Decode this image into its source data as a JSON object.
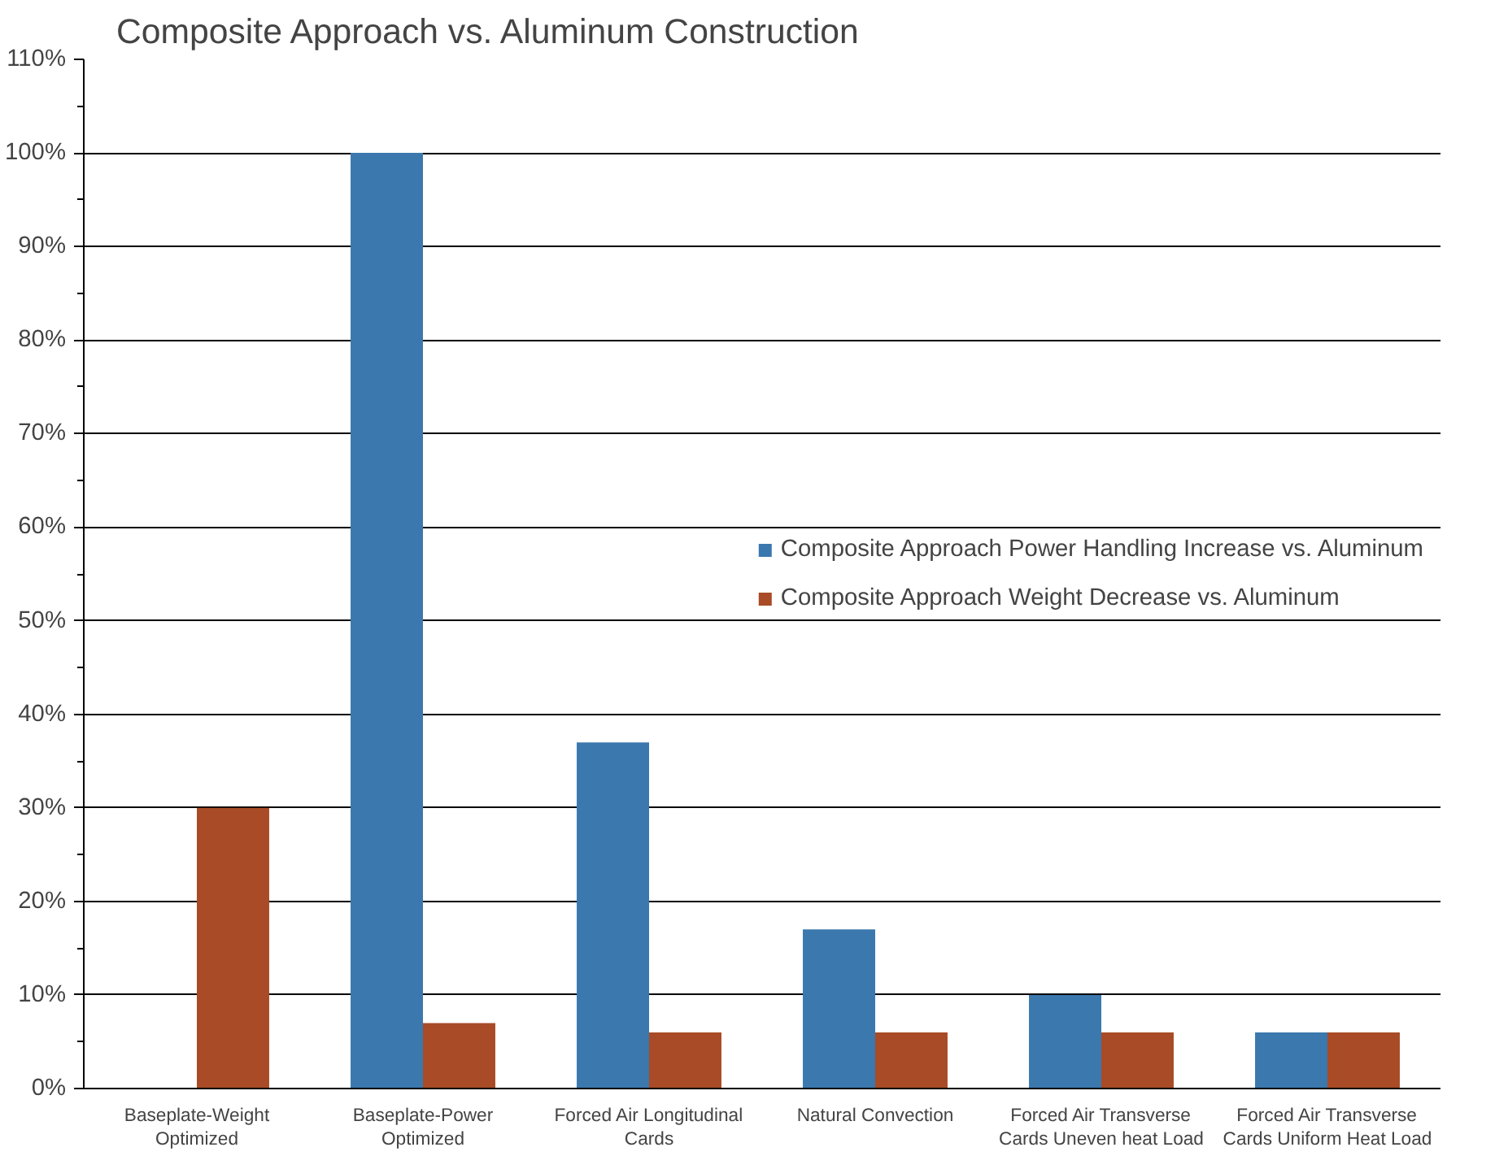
{
  "chart_data": {
    "type": "bar",
    "title": "Composite Approach vs. Aluminum Construction",
    "categories": [
      "Baseplate-Weight Optimized",
      "Baseplate-Power Optimized",
      "Forced Air Longitudinal Cards",
      "Natural Convection",
      "Forced Air Transverse Cards Uneven heat Load",
      "Forced Air Transverse Cards Uniform Heat Load"
    ],
    "series": [
      {
        "name": "Composite Approach Power Handling Increase vs. Aluminum",
        "color": "#3b78ae",
        "values": [
          0,
          100,
          37,
          17,
          10,
          6
        ]
      },
      {
        "name": "Composite Approach Weight Decrease vs. Aluminum",
        "color": "#a84b26",
        "values": [
          30,
          7,
          6,
          6,
          6,
          6
        ]
      }
    ],
    "ylim": [
      0,
      110
    ],
    "yticks": [
      {
        "value": 0,
        "label": "0%"
      },
      {
        "value": 10,
        "label": "10%"
      },
      {
        "value": 20,
        "label": "20%"
      },
      {
        "value": 30,
        "label": "30%"
      },
      {
        "value": 40,
        "label": "40%"
      },
      {
        "value": 50,
        "label": "50%"
      },
      {
        "value": 60,
        "label": "60%"
      },
      {
        "value": 70,
        "label": "70%"
      },
      {
        "value": 80,
        "label": "80%"
      },
      {
        "value": 90,
        "label": "90%"
      },
      {
        "value": 100,
        "label": "100%"
      },
      {
        "value": 110,
        "label": "110%"
      }
    ],
    "grid": "y",
    "legend": "right"
  }
}
